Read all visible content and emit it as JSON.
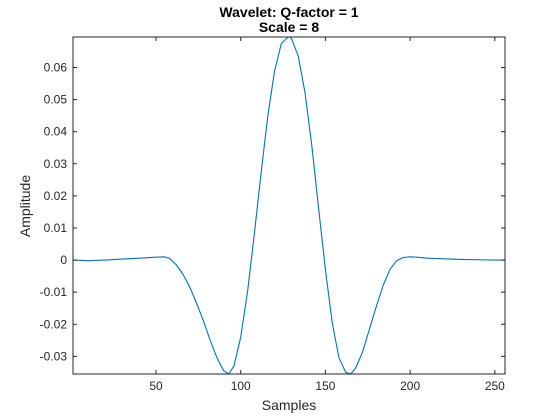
{
  "chart_data": {
    "type": "line",
    "title": "Wavelet: Q-factor = 1",
    "subtitle": "Scale = 8",
    "xlabel": "Samples",
    "ylabel": "Amplitude",
    "xlim": [
      1,
      256
    ],
    "ylim": [
      -0.0355,
      0.0695
    ],
    "grid": false,
    "line_color": "#0072BD",
    "x_ticks": [
      {
        "value": 50,
        "label": "50"
      },
      {
        "value": 100,
        "label": "100"
      },
      {
        "value": 150,
        "label": "150"
      },
      {
        "value": 200,
        "label": "200"
      },
      {
        "value": 250,
        "label": "250"
      }
    ],
    "y_ticks": [
      {
        "value": -0.03,
        "label": "-0.03"
      },
      {
        "value": -0.02,
        "label": "-0.02"
      },
      {
        "value": -0.01,
        "label": "-0.01"
      },
      {
        "value": 0,
        "label": "0"
      },
      {
        "value": 0.01,
        "label": "0.01"
      },
      {
        "value": 0.02,
        "label": "0.02"
      },
      {
        "value": 0.03,
        "label": "0.03"
      },
      {
        "value": 0.04,
        "label": "0.04"
      },
      {
        "value": 0.05,
        "label": "0.05"
      },
      {
        "value": 0.06,
        "label": "0.06"
      }
    ],
    "series": [
      {
        "x": [
          1,
          10,
          20,
          30,
          40,
          50,
          55,
          58,
          62,
          66,
          70,
          74,
          78,
          82,
          86,
          90,
          93,
          96,
          100,
          104,
          108,
          112,
          116,
          120,
          124,
          128,
          129,
          130,
          134,
          138,
          142,
          146,
          150,
          154,
          158,
          162,
          165,
          168,
          172,
          176,
          180,
          184,
          188,
          192,
          196,
          200,
          204,
          210,
          220,
          230,
          240,
          250,
          256
        ],
        "y": [
          0,
          -0.0002,
          0,
          0.0003,
          0.0006,
          0.0009,
          0.001,
          0.0005,
          -0.0015,
          -0.0045,
          -0.0085,
          -0.0135,
          -0.019,
          -0.025,
          -0.0305,
          -0.0345,
          -0.0355,
          -0.033,
          -0.024,
          -0.01,
          0.008,
          0.027,
          0.045,
          0.059,
          0.0675,
          0.0695,
          0.0695,
          0.069,
          0.0635,
          0.052,
          0.0355,
          0.016,
          -0.003,
          -0.0195,
          -0.0305,
          -0.035,
          -0.0355,
          -0.0335,
          -0.0285,
          -0.0215,
          -0.0145,
          -0.008,
          -0.003,
          -0.0002,
          0.0008,
          0.001,
          0.0009,
          0.0006,
          0.0004,
          0.0002,
          0.0001,
          0,
          0
        ]
      }
    ]
  }
}
